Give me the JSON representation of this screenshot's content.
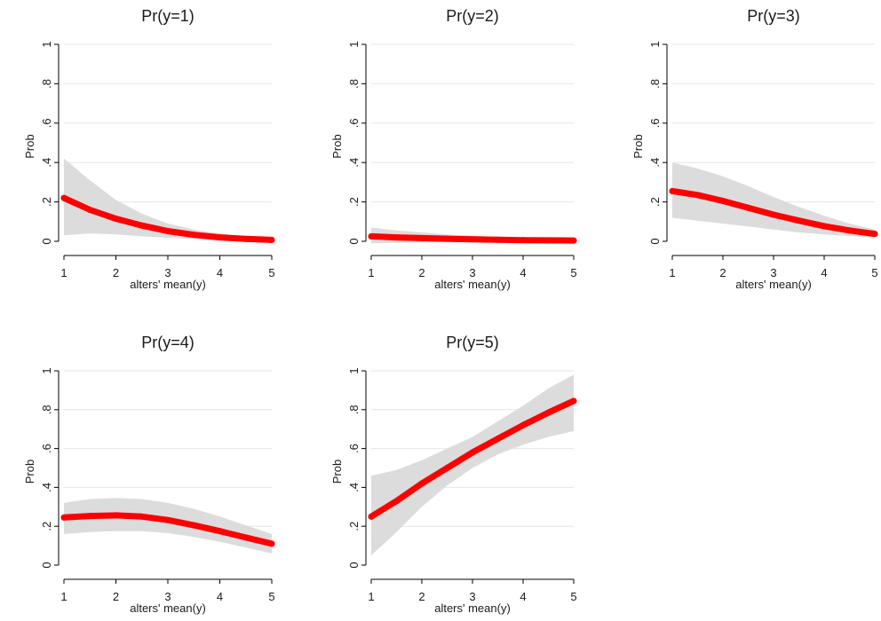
{
  "chart_data": [
    {
      "type": "line",
      "title": "Pr(y=1)",
      "xlabel": "alters' mean(y)",
      "ylabel": "Prob",
      "xlim": [
        1,
        5
      ],
      "ylim": [
        0,
        1
      ],
      "xticks": [
        1,
        2,
        3,
        4,
        5
      ],
      "xtick_labels": [
        "1",
        "2",
        "3",
        "4",
        "5"
      ],
      "yticks": [
        0,
        0.2,
        0.4,
        0.6,
        0.8,
        1
      ],
      "ytick_labels": [
        "0",
        ".2",
        ".4",
        ".6",
        ".8",
        "1"
      ],
      "grid": true,
      "x": [
        1,
        1.5,
        2,
        2.5,
        3,
        3.5,
        4,
        4.5,
        5
      ],
      "series": [
        {
          "values": [
            0.22,
            0.16,
            0.115,
            0.08,
            0.052,
            0.033,
            0.02,
            0.012,
            0.007
          ],
          "lower": [
            0.03,
            0.04,
            0.035,
            0.025,
            0.018,
            0.012,
            0.007,
            0.003,
            0.001
          ],
          "upper": [
            0.42,
            0.31,
            0.21,
            0.14,
            0.09,
            0.06,
            0.04,
            0.025,
            0.015
          ]
        }
      ]
    },
    {
      "type": "line",
      "title": "Pr(y=2)",
      "xlabel": "alters' mean(y)",
      "ylabel": "Prob",
      "xlim": [
        1,
        5
      ],
      "ylim": [
        0,
        1
      ],
      "xticks": [
        1,
        2,
        3,
        4,
        5
      ],
      "xtick_labels": [
        "1",
        "2",
        "3",
        "4",
        "5"
      ],
      "yticks": [
        0,
        0.2,
        0.4,
        0.6,
        0.8,
        1
      ],
      "ytick_labels": [
        "0",
        ".2",
        ".4",
        ".6",
        ".8",
        "1"
      ],
      "grid": true,
      "x": [
        1,
        1.5,
        2,
        2.5,
        3,
        3.5,
        4,
        4.5,
        5
      ],
      "series": [
        {
          "values": [
            0.025,
            0.02,
            0.016,
            0.013,
            0.01,
            0.008,
            0.006,
            0.005,
            0.004
          ],
          "lower": [
            -0.01,
            -0.008,
            -0.006,
            -0.005,
            -0.004,
            -0.003,
            -0.002,
            -0.002,
            -0.001
          ],
          "upper": [
            0.07,
            0.055,
            0.045,
            0.035,
            0.028,
            0.022,
            0.018,
            0.015,
            0.012
          ]
        }
      ]
    },
    {
      "type": "line",
      "title": "Pr(y=3)",
      "xlabel": "alters' mean(y)",
      "ylabel": "Prob",
      "xlim": [
        1,
        5
      ],
      "ylim": [
        0,
        1
      ],
      "xticks": [
        1,
        2,
        3,
        4,
        5
      ],
      "xtick_labels": [
        "1",
        "2",
        "3",
        "4",
        "5"
      ],
      "yticks": [
        0,
        0.2,
        0.4,
        0.6,
        0.8,
        1
      ],
      "ytick_labels": [
        "0",
        ".2",
        ".4",
        ".6",
        ".8",
        "1"
      ],
      "grid": true,
      "x": [
        1,
        1.5,
        2,
        2.5,
        3,
        3.5,
        4,
        4.5,
        5
      ],
      "series": [
        {
          "values": [
            0.255,
            0.235,
            0.205,
            0.17,
            0.135,
            0.105,
            0.077,
            0.055,
            0.038
          ],
          "lower": [
            0.12,
            0.105,
            0.09,
            0.075,
            0.06,
            0.045,
            0.035,
            0.027,
            0.02
          ],
          "upper": [
            0.4,
            0.37,
            0.33,
            0.28,
            0.225,
            0.175,
            0.13,
            0.09,
            0.06
          ]
        }
      ]
    },
    {
      "type": "line",
      "title": "Pr(y=4)",
      "xlabel": "alters' mean(y)",
      "ylabel": "Prob",
      "xlim": [
        1,
        5
      ],
      "ylim": [
        0,
        1
      ],
      "xticks": [
        1,
        2,
        3,
        4,
        5
      ],
      "xtick_labels": [
        "1",
        "2",
        "3",
        "4",
        "5"
      ],
      "yticks": [
        0,
        0.2,
        0.4,
        0.6,
        0.8,
        1
      ],
      "ytick_labels": [
        "0",
        ".2",
        ".4",
        ".6",
        ".8",
        "1"
      ],
      "grid": true,
      "x": [
        1,
        1.5,
        2,
        2.5,
        3,
        3.5,
        4,
        4.5,
        5
      ],
      "series": [
        {
          "values": [
            0.245,
            0.253,
            0.256,
            0.25,
            0.232,
            0.205,
            0.175,
            0.142,
            0.11
          ],
          "lower": [
            0.16,
            0.17,
            0.175,
            0.175,
            0.165,
            0.145,
            0.12,
            0.09,
            0.06
          ],
          "upper": [
            0.32,
            0.34,
            0.345,
            0.34,
            0.32,
            0.29,
            0.25,
            0.205,
            0.16
          ]
        }
      ]
    },
    {
      "type": "line",
      "title": "Pr(y=5)",
      "xlabel": "alters' mean(y)",
      "ylabel": "Prob",
      "xlim": [
        1,
        5
      ],
      "ylim": [
        0,
        1
      ],
      "xticks": [
        1,
        2,
        3,
        4,
        5
      ],
      "xtick_labels": [
        "1",
        "2",
        "3",
        "4",
        "5"
      ],
      "yticks": [
        0,
        0.2,
        0.4,
        0.6,
        0.8,
        1
      ],
      "ytick_labels": [
        "0",
        ".2",
        ".4",
        ".6",
        ".8",
        "1"
      ],
      "grid": true,
      "x": [
        1,
        1.5,
        2,
        2.5,
        3,
        3.5,
        4,
        4.5,
        5
      ],
      "series": [
        {
          "values": [
            0.25,
            0.33,
            0.42,
            0.5,
            0.58,
            0.65,
            0.72,
            0.785,
            0.845
          ],
          "lower": [
            0.05,
            0.17,
            0.3,
            0.41,
            0.5,
            0.57,
            0.62,
            0.66,
            0.69
          ],
          "upper": [
            0.46,
            0.49,
            0.54,
            0.6,
            0.66,
            0.74,
            0.82,
            0.91,
            0.98
          ]
        }
      ]
    }
  ],
  "colors": {
    "series_line": "#ff0000",
    "ci_band": "#dcdcdc",
    "background": "#ffffff"
  }
}
